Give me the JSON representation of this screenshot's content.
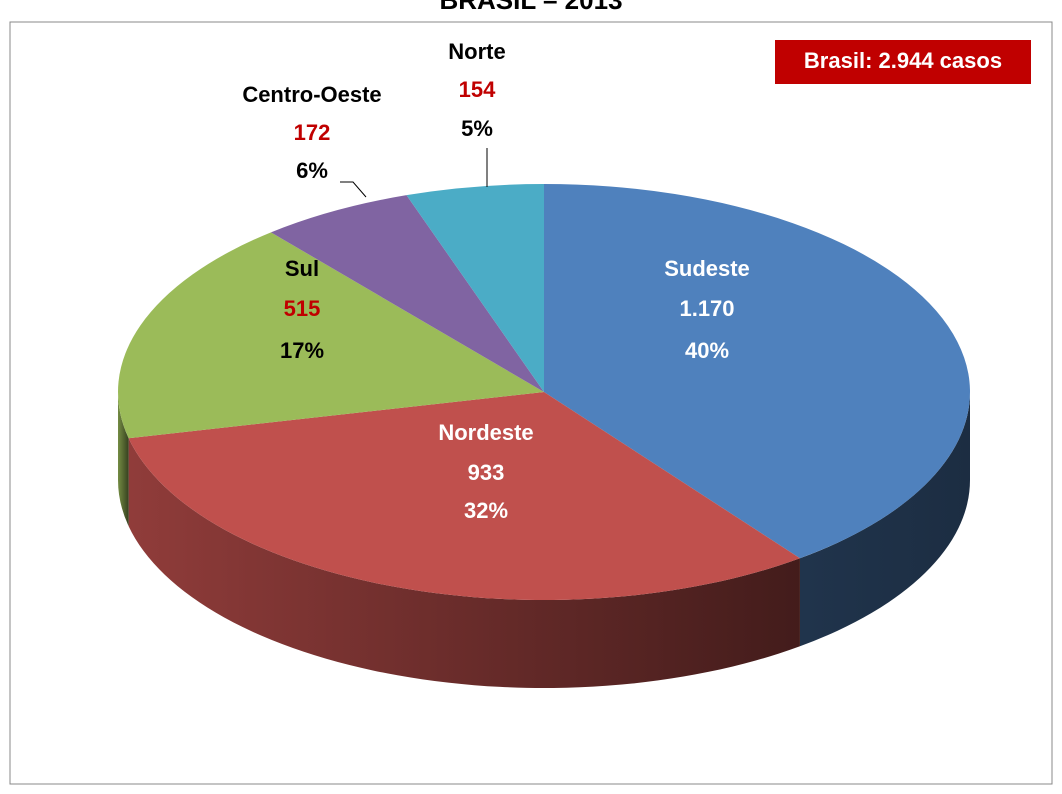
{
  "chart_data": {
    "type": "pie3d",
    "title": "BRASIL – 2013",
    "annotation": "Brasil: 2.944 casos",
    "categories": [
      "Sudeste",
      "Nordeste",
      "Sul",
      "Centro-Oeste",
      "Norte"
    ],
    "values": [
      1170,
      933,
      515,
      172,
      154
    ],
    "value_labels": [
      "1.170",
      "933",
      "515",
      "172",
      "154"
    ],
    "percent_labels": [
      "40%",
      "32%",
      "17%",
      "6%",
      "5%"
    ],
    "colors": [
      "#4f81bd",
      "#c0504d",
      "#9bbb59",
      "#8064a2",
      "#4bacc6"
    ]
  }
}
